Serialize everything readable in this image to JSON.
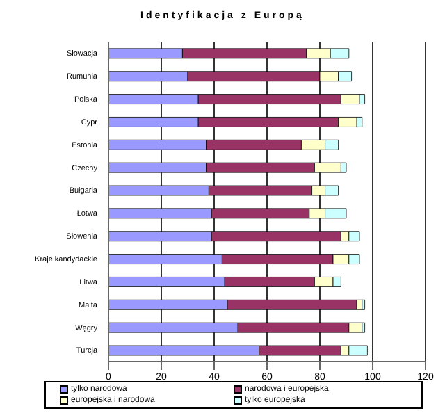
{
  "chart_data": {
    "type": "bar",
    "orientation": "horizontal",
    "stacked": true,
    "title": "Identyfikacja z Europą",
    "categories": [
      "Słowacja",
      "Rumunia",
      "Polska",
      "Cypr",
      "Estonia",
      "Czechy",
      "Bułgaria",
      "Łotwa",
      "Słowenia",
      "Kraje kandydackie",
      "Litwa",
      "Malta",
      "Węgry",
      "Turcja"
    ],
    "series": [
      {
        "name": "tylko narodowa",
        "color": "#9999ff",
        "values": [
          28,
          30,
          34,
          34,
          37,
          37,
          38,
          39,
          39,
          43,
          44,
          45,
          49,
          57
        ]
      },
      {
        "name": "narodowa i europejska",
        "color": "#993366",
        "values": [
          47,
          50,
          54,
          53,
          36,
          41,
          39,
          37,
          49,
          42,
          34,
          49,
          42,
          31
        ]
      },
      {
        "name": "europejska i narodowa",
        "color": "#ffffcc",
        "values": [
          9,
          7,
          7,
          7,
          9,
          10,
          5,
          6,
          3,
          6,
          7,
          2,
          5,
          3
        ]
      },
      {
        "name": "tylko europejska",
        "color": "#ccffff",
        "values": [
          7,
          5,
          2,
          2,
          5,
          2,
          5,
          8,
          4,
          4,
          3,
          1,
          1,
          7
        ]
      }
    ],
    "xlim": [
      0,
      120
    ],
    "xticks": [
      0,
      20,
      40,
      60,
      80,
      100,
      120
    ],
    "grid": "x",
    "legend": "bottom"
  }
}
